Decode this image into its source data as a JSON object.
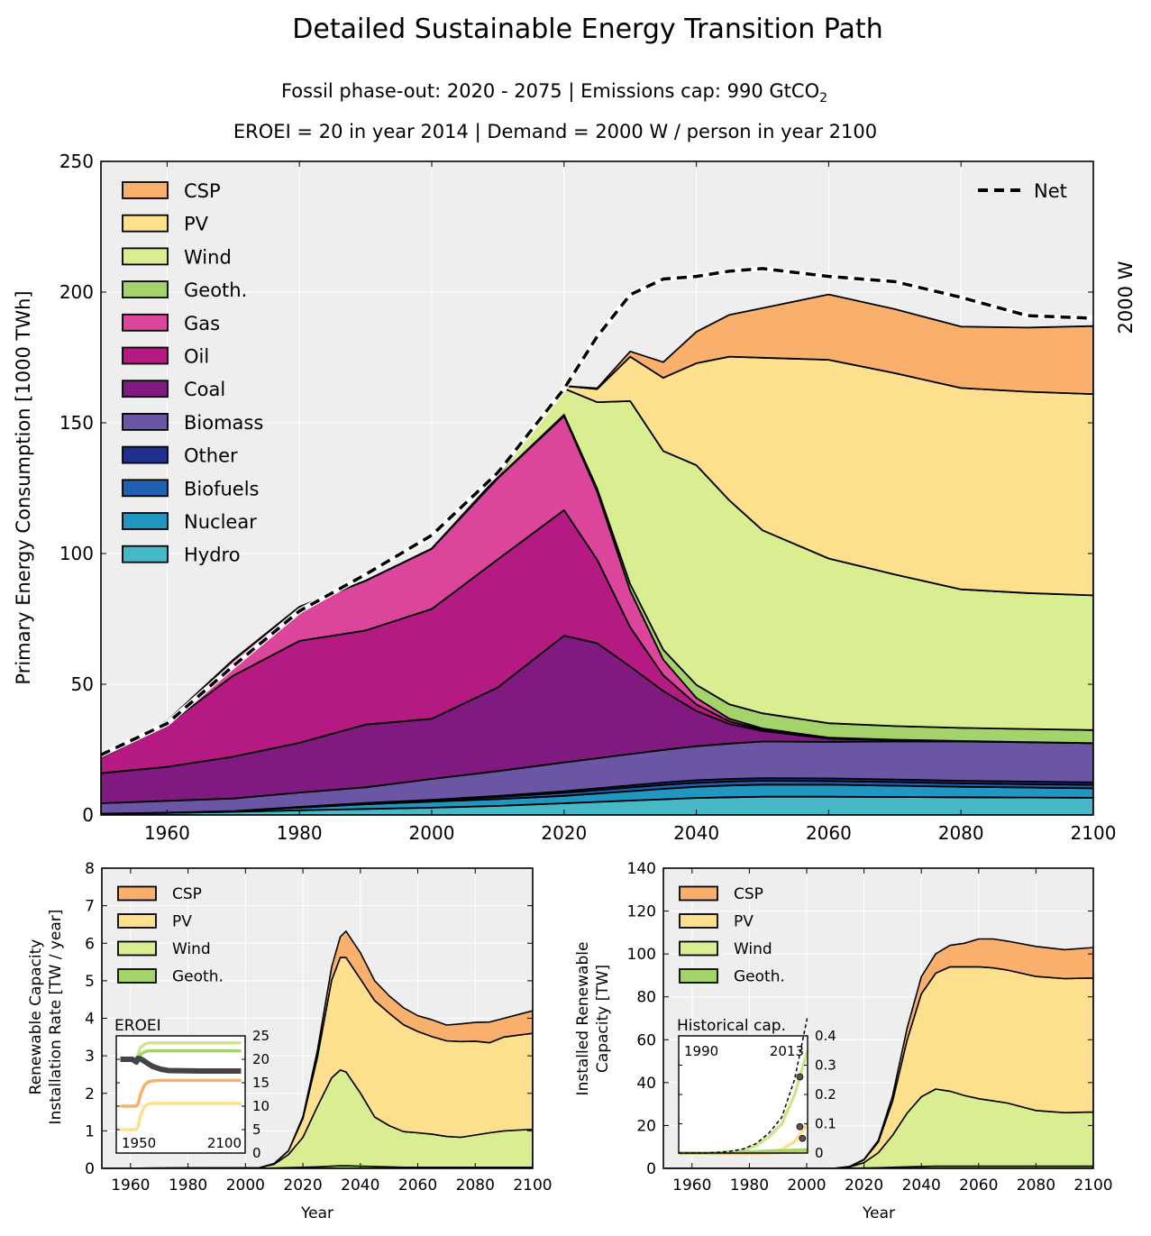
{
  "chart_data": [
    {
      "type": "area",
      "stacked": true,
      "title": "Detailed Sustainable Energy Transition Path",
      "subtitle_line1_a": "Fossil phase-out: 2020 - 2075   |   Emissions cap: 990 GtCO",
      "subtitle_line1_sub": "2",
      "subtitle_line2": "EROEI = 20 in year 2014   |   Demand = 2000 W / person in year 2100",
      "ylabel": "Primary Energy Consumption [1000 TWh]",
      "right_label": "2000 W",
      "xlim": [
        1950,
        2100
      ],
      "ylim": [
        0,
        250
      ],
      "x_ticks": [
        1960,
        1980,
        2000,
        2020,
        2040,
        2060,
        2080,
        2100
      ],
      "y_ticks": [
        0,
        50,
        100,
        150,
        200,
        250
      ],
      "grid": true,
      "legend_position": "top-left",
      "x": [
        1950,
        1960,
        1970,
        1980,
        1990,
        2000,
        2010,
        2020,
        2025,
        2030,
        2035,
        2040,
        2045,
        2050,
        2060,
        2070,
        2080,
        2090,
        2100
      ],
      "series": [
        {
          "name": "Hydro",
          "color": "#47b8c8",
          "values": [
            0.5,
            0.8,
            1.2,
            1.8,
            2.3,
            2.8,
            3.5,
            4.5,
            5.0,
            5.5,
            6.0,
            6.5,
            6.8,
            7.0,
            7.0,
            6.9,
            6.8,
            6.7,
            6.6
          ]
        },
        {
          "name": "Nuclear",
          "color": "#2096c0",
          "values": [
            0.0,
            0.1,
            0.3,
            1.0,
            1.8,
            2.3,
            2.6,
            2.8,
            3.2,
            3.6,
            4.0,
            4.3,
            4.5,
            4.6,
            4.6,
            4.3,
            4.0,
            3.8,
            3.6
          ]
        },
        {
          "name": "Biofuels",
          "color": "#2060b0",
          "values": [
            0.0,
            0.0,
            0.0,
            0.2,
            0.3,
            0.4,
            0.8,
            1.2,
            1.3,
            1.4,
            1.5,
            1.5,
            1.5,
            1.5,
            1.4,
            1.4,
            1.3,
            1.3,
            1.3
          ]
        },
        {
          "name": "Other",
          "color": "#203090",
          "values": [
            0.0,
            0.0,
            0.0,
            0.1,
            0.2,
            0.3,
            0.4,
            0.6,
            0.7,
            0.8,
            0.9,
            1.0,
            1.0,
            1.0,
            1.0,
            1.0,
            1.0,
            1.0,
            1.0
          ]
        },
        {
          "name": "Biomass",
          "color": "#6a56a4",
          "values": [
            4.0,
            4.5,
            4.8,
            5.5,
            6.0,
            8.0,
            9.5,
            11.0,
            11.5,
            12.0,
            12.5,
            13.0,
            13.5,
            14.0,
            14.0,
            14.5,
            15.0,
            15.0,
            15.0
          ]
        },
        {
          "name": "Coal",
          "color": "#801a80",
          "values": [
            11.5,
            13.0,
            16.0,
            19.0,
            24.0,
            23.0,
            32.0,
            48.5,
            44.0,
            33.5,
            22.5,
            13.5,
            7.5,
            4.0,
            1.2,
            0.5,
            0.2,
            0.1,
            0.0
          ]
        },
        {
          "name": "Oil",
          "color": "#b41a82",
          "values": [
            6.0,
            16.0,
            31.0,
            39.0,
            36.0,
            42.0,
            49.0,
            48.0,
            32.0,
            15.0,
            6.0,
            2.5,
            1.0,
            0.5,
            0.2,
            0.1,
            0.0,
            0.0,
            0.0
          ]
        },
        {
          "name": "Gas",
          "color": "#dc459c",
          "values": [
            0.5,
            1.5,
            6.0,
            13.0,
            19.0,
            23.0,
            31.0,
            36.0,
            26.0,
            14.0,
            6.0,
            2.5,
            1.0,
            0.5,
            0.2,
            0.1,
            0.0,
            0.0,
            0.0
          ]
        },
        {
          "name": "Geoth.",
          "color": "#a4d36c",
          "values": [
            0.0,
            0.0,
            0.0,
            0.0,
            0.0,
            0.1,
            0.2,
            0.5,
            1.2,
            2.5,
            3.8,
            5.0,
            5.5,
            5.8,
            5.5,
            5.2,
            5.0,
            5.0,
            5.0
          ]
        },
        {
          "name": "Wind",
          "color": "#d9ed91",
          "values": [
            0.0,
            0.0,
            0.0,
            0.0,
            0.0,
            0.0,
            0.5,
            10.0,
            33.0,
            70.0,
            76.0,
            84.0,
            78.0,
            70.0,
            63.0,
            58.0,
            53.0,
            52.0,
            51.5
          ]
        },
        {
          "name": "PV",
          "color": "#fde08e",
          "values": [
            0.0,
            0.0,
            0.0,
            0.0,
            0.0,
            0.0,
            0.0,
            1.0,
            5.0,
            17.0,
            28.0,
            39.0,
            55.0,
            66.0,
            76.0,
            77.0,
            77.0,
            77.0,
            77.0
          ]
        },
        {
          "name": "CSP",
          "color": "#f9b06c",
          "values": [
            0.0,
            0.0,
            0.0,
            0.0,
            0.0,
            0.0,
            0.0,
            0.0,
            0.3,
            2.0,
            6.0,
            12.0,
            16.0,
            19.0,
            25.0,
            24.5,
            23.5,
            24.5,
            26.0
          ]
        }
      ],
      "net_series": {
        "name": "Net",
        "values": [
          23,
          35,
          57,
          78,
          92,
          107,
          131,
          163,
          183,
          199,
          205,
          206,
          208,
          209,
          206,
          204,
          198,
          191,
          190
        ]
      },
      "legend_order": [
        "CSP",
        "PV",
        "Wind",
        "Geoth.",
        "Gas",
        "Oil",
        "Coal",
        "Biomass",
        "Other",
        "Biofuels",
        "Nuclear",
        "Hydro"
      ]
    },
    {
      "type": "area",
      "stacked": true,
      "ylabel_line1": "Renewable Capacity",
      "ylabel_line2": "Installation Rate [TW / year]",
      "xlabel": "Year",
      "xlim": [
        1950,
        2100
      ],
      "ylim": [
        0,
        8
      ],
      "x_ticks": [
        1960,
        1980,
        2000,
        2020,
        2040,
        2060,
        2080,
        2100
      ],
      "y_ticks": [
        0,
        1,
        2,
        3,
        4,
        5,
        6,
        7,
        8
      ],
      "x": [
        1950,
        2005,
        2010,
        2015,
        2020,
        2025,
        2030,
        2033,
        2035,
        2040,
        2045,
        2050,
        2055,
        2060,
        2065,
        2070,
        2075,
        2080,
        2085,
        2090,
        2095,
        2100
      ],
      "series": [
        {
          "name": "Geoth.",
          "color": "#a4d36c",
          "values": [
            0,
            0,
            0.01,
            0.02,
            0.03,
            0.04,
            0.06,
            0.07,
            0.07,
            0.06,
            0.05,
            0.04,
            0.03,
            0.03,
            0.03,
            0.03,
            0.03,
            0.03,
            0.03,
            0.03,
            0.03,
            0.03
          ]
        },
        {
          "name": "Wind",
          "color": "#d9ed91",
          "values": [
            0,
            0.02,
            0.1,
            0.35,
            0.8,
            1.6,
            2.35,
            2.55,
            2.5,
            1.95,
            1.32,
            1.1,
            0.95,
            0.92,
            0.88,
            0.82,
            0.8,
            0.86,
            0.92,
            0.97,
            0.99,
            1.01
          ]
        },
        {
          "name": "PV",
          "color": "#fde08e",
          "values": [
            0,
            0,
            0.02,
            0.1,
            0.5,
            1.3,
            2.6,
            3.0,
            3.05,
            3.04,
            3.1,
            3.0,
            2.85,
            2.7,
            2.6,
            2.55,
            2.55,
            2.5,
            2.4,
            2.5,
            2.53,
            2.56
          ]
        },
        {
          "name": "CSP",
          "color": "#f9b06c",
          "values": [
            0,
            0,
            0,
            0,
            0.05,
            0.18,
            0.35,
            0.55,
            0.7,
            0.7,
            0.53,
            0.46,
            0.45,
            0.42,
            0.45,
            0.42,
            0.47,
            0.5,
            0.55,
            0.5,
            0.55,
            0.6
          ]
        }
      ],
      "legend_order": [
        "CSP",
        "PV",
        "Wind",
        "Geoth."
      ],
      "inset": {
        "title": "EROEI",
        "xlim": [
          1945,
          2105
        ],
        "ylim": [
          0,
          25
        ],
        "y_ticks": [
          0,
          5,
          10,
          15,
          20,
          25
        ],
        "x_tick_labels": [
          "1950",
          "2100"
        ],
        "x": [
          1950,
          1960,
          1965,
          1970,
          1972,
          1975,
          1980,
          1985,
          1990,
          2000,
          2010,
          2050,
          2100
        ],
        "series": [
          {
            "name": "Wind",
            "color": "#cde68e",
            "values": [
              20,
              20,
              20,
              20,
              21,
              22.5,
              23.2,
              23.5,
              23.5,
              23.5,
              23.5,
              23.5,
              23.5
            ]
          },
          {
            "name": "Geoth.",
            "color": "#a4d36c",
            "values": [
              20,
              20,
              20,
              20,
              20.5,
              21,
              21.6,
              21.8,
              21.8,
              21.8,
              21.8,
              21.8,
              21.8
            ]
          },
          {
            "name": "Net",
            "color": "#444444",
            "values": [
              20,
              20,
              20,
              19.4,
              20.2,
              20.1,
              19.6,
              19.0,
              18.5,
              17.9,
              17.6,
              17.5,
              17.5
            ]
          },
          {
            "name": "CSP",
            "color": "#f9b06c",
            "values": [
              10,
              10,
              10,
              10,
              10.5,
              12.5,
              14.5,
              15.2,
              15.4,
              15.5,
              15.5,
              15.5,
              15.5
            ]
          },
          {
            "name": "PV",
            "color": "#fde08e",
            "values": [
              5,
              5,
              5,
              5,
              5.5,
              8,
              10,
              10.5,
              10.6,
              10.6,
              10.6,
              10.6,
              10.6
            ]
          }
        ]
      }
    },
    {
      "type": "area",
      "stacked": true,
      "ylabel_line1": "Installed Renewable",
      "ylabel_line2": "Capacity [TW]",
      "xlabel": "Year",
      "xlim": [
        1950,
        2100
      ],
      "ylim": [
        0,
        140
      ],
      "x_ticks": [
        1960,
        1980,
        2000,
        2020,
        2040,
        2060,
        2080,
        2100
      ],
      "y_ticks": [
        0,
        20,
        40,
        60,
        80,
        100,
        120,
        140
      ],
      "x": [
        1950,
        2005,
        2010,
        2015,
        2020,
        2025,
        2030,
        2035,
        2040,
        2045,
        2050,
        2055,
        2060,
        2065,
        2070,
        2080,
        2090,
        2100
      ],
      "series": [
        {
          "name": "Geoth.",
          "color": "#a4d36c",
          "values": [
            0,
            0,
            0,
            0.1,
            0.2,
            0.3,
            0.5,
            0.7,
            0.9,
            1.0,
            1.0,
            1.0,
            1.0,
            1.0,
            1.0,
            1.0,
            1.0,
            1.0
          ]
        },
        {
          "name": "Wind",
          "color": "#d9ed91",
          "values": [
            0,
            0,
            0.1,
            0.6,
            2.5,
            7,
            15,
            25,
            32.5,
            36,
            35,
            33,
            31.5,
            30.5,
            29.5,
            26,
            25,
            25.3
          ]
        },
        {
          "name": "PV",
          "color": "#fde08e",
          "values": [
            0,
            0,
            0,
            0.2,
            1.3,
            5,
            16,
            34,
            48,
            54,
            58,
            60,
            61.5,
            62,
            62,
            62.5,
            62.5,
            62.5
          ]
        },
        {
          "name": "CSP",
          "color": "#f9b06c",
          "values": [
            0,
            0,
            0,
            0,
            0.2,
            0.8,
            2.5,
            5.5,
            8,
            9,
            10,
            11,
            13,
            13.5,
            13.5,
            14,
            13.5,
            14.2
          ]
        }
      ],
      "legend_order": [
        "CSP",
        "PV",
        "Wind",
        "Geoth."
      ],
      "inset": {
        "title": "Historical cap.",
        "xlim": [
          1950,
          2000
        ],
        "ylim": [
          0,
          0.4
        ],
        "y_ticks": [
          0,
          0.1,
          0.2,
          0.3,
          0.4
        ],
        "x_tick_labels": [
          "1990",
          "2013"
        ],
        "x": [
          1950,
          1960,
          1965,
          1970,
          1975,
          1980,
          1985,
          1990,
          1995,
          2000
        ],
        "series": [
          {
            "name": "Wind",
            "color": "#cde68e",
            "values": [
              0.0,
              0.0,
              0.001,
              0.004,
              0.01,
              0.025,
              0.055,
              0.1,
              0.2,
              0.35
            ]
          },
          {
            "name": "PV",
            "color": "#fde08e",
            "values": [
              0,
              0,
              0,
              0,
              0.001,
              0.002,
              0.005,
              0.012,
              0.04,
              0.1
            ]
          },
          {
            "name": "CSP",
            "color": "#f9b06c",
            "values": [
              0,
              0,
              0,
              0,
              0,
              0,
              0.001,
              0.002,
              0.003,
              0.005
            ]
          },
          {
            "name": "Geoth.",
            "color": "#a4d36c",
            "values": [
              0,
              0,
              0.001,
              0.002,
              0.003,
              0.005,
              0.007,
              0.008,
              0.01,
              0.012
            ]
          }
        ],
        "points": [
          {
            "x": 1997,
            "y": 0.26
          },
          {
            "x": 1997,
            "y": 0.09
          },
          {
            "x": 1998,
            "y": 0.05
          }
        ]
      }
    }
  ]
}
